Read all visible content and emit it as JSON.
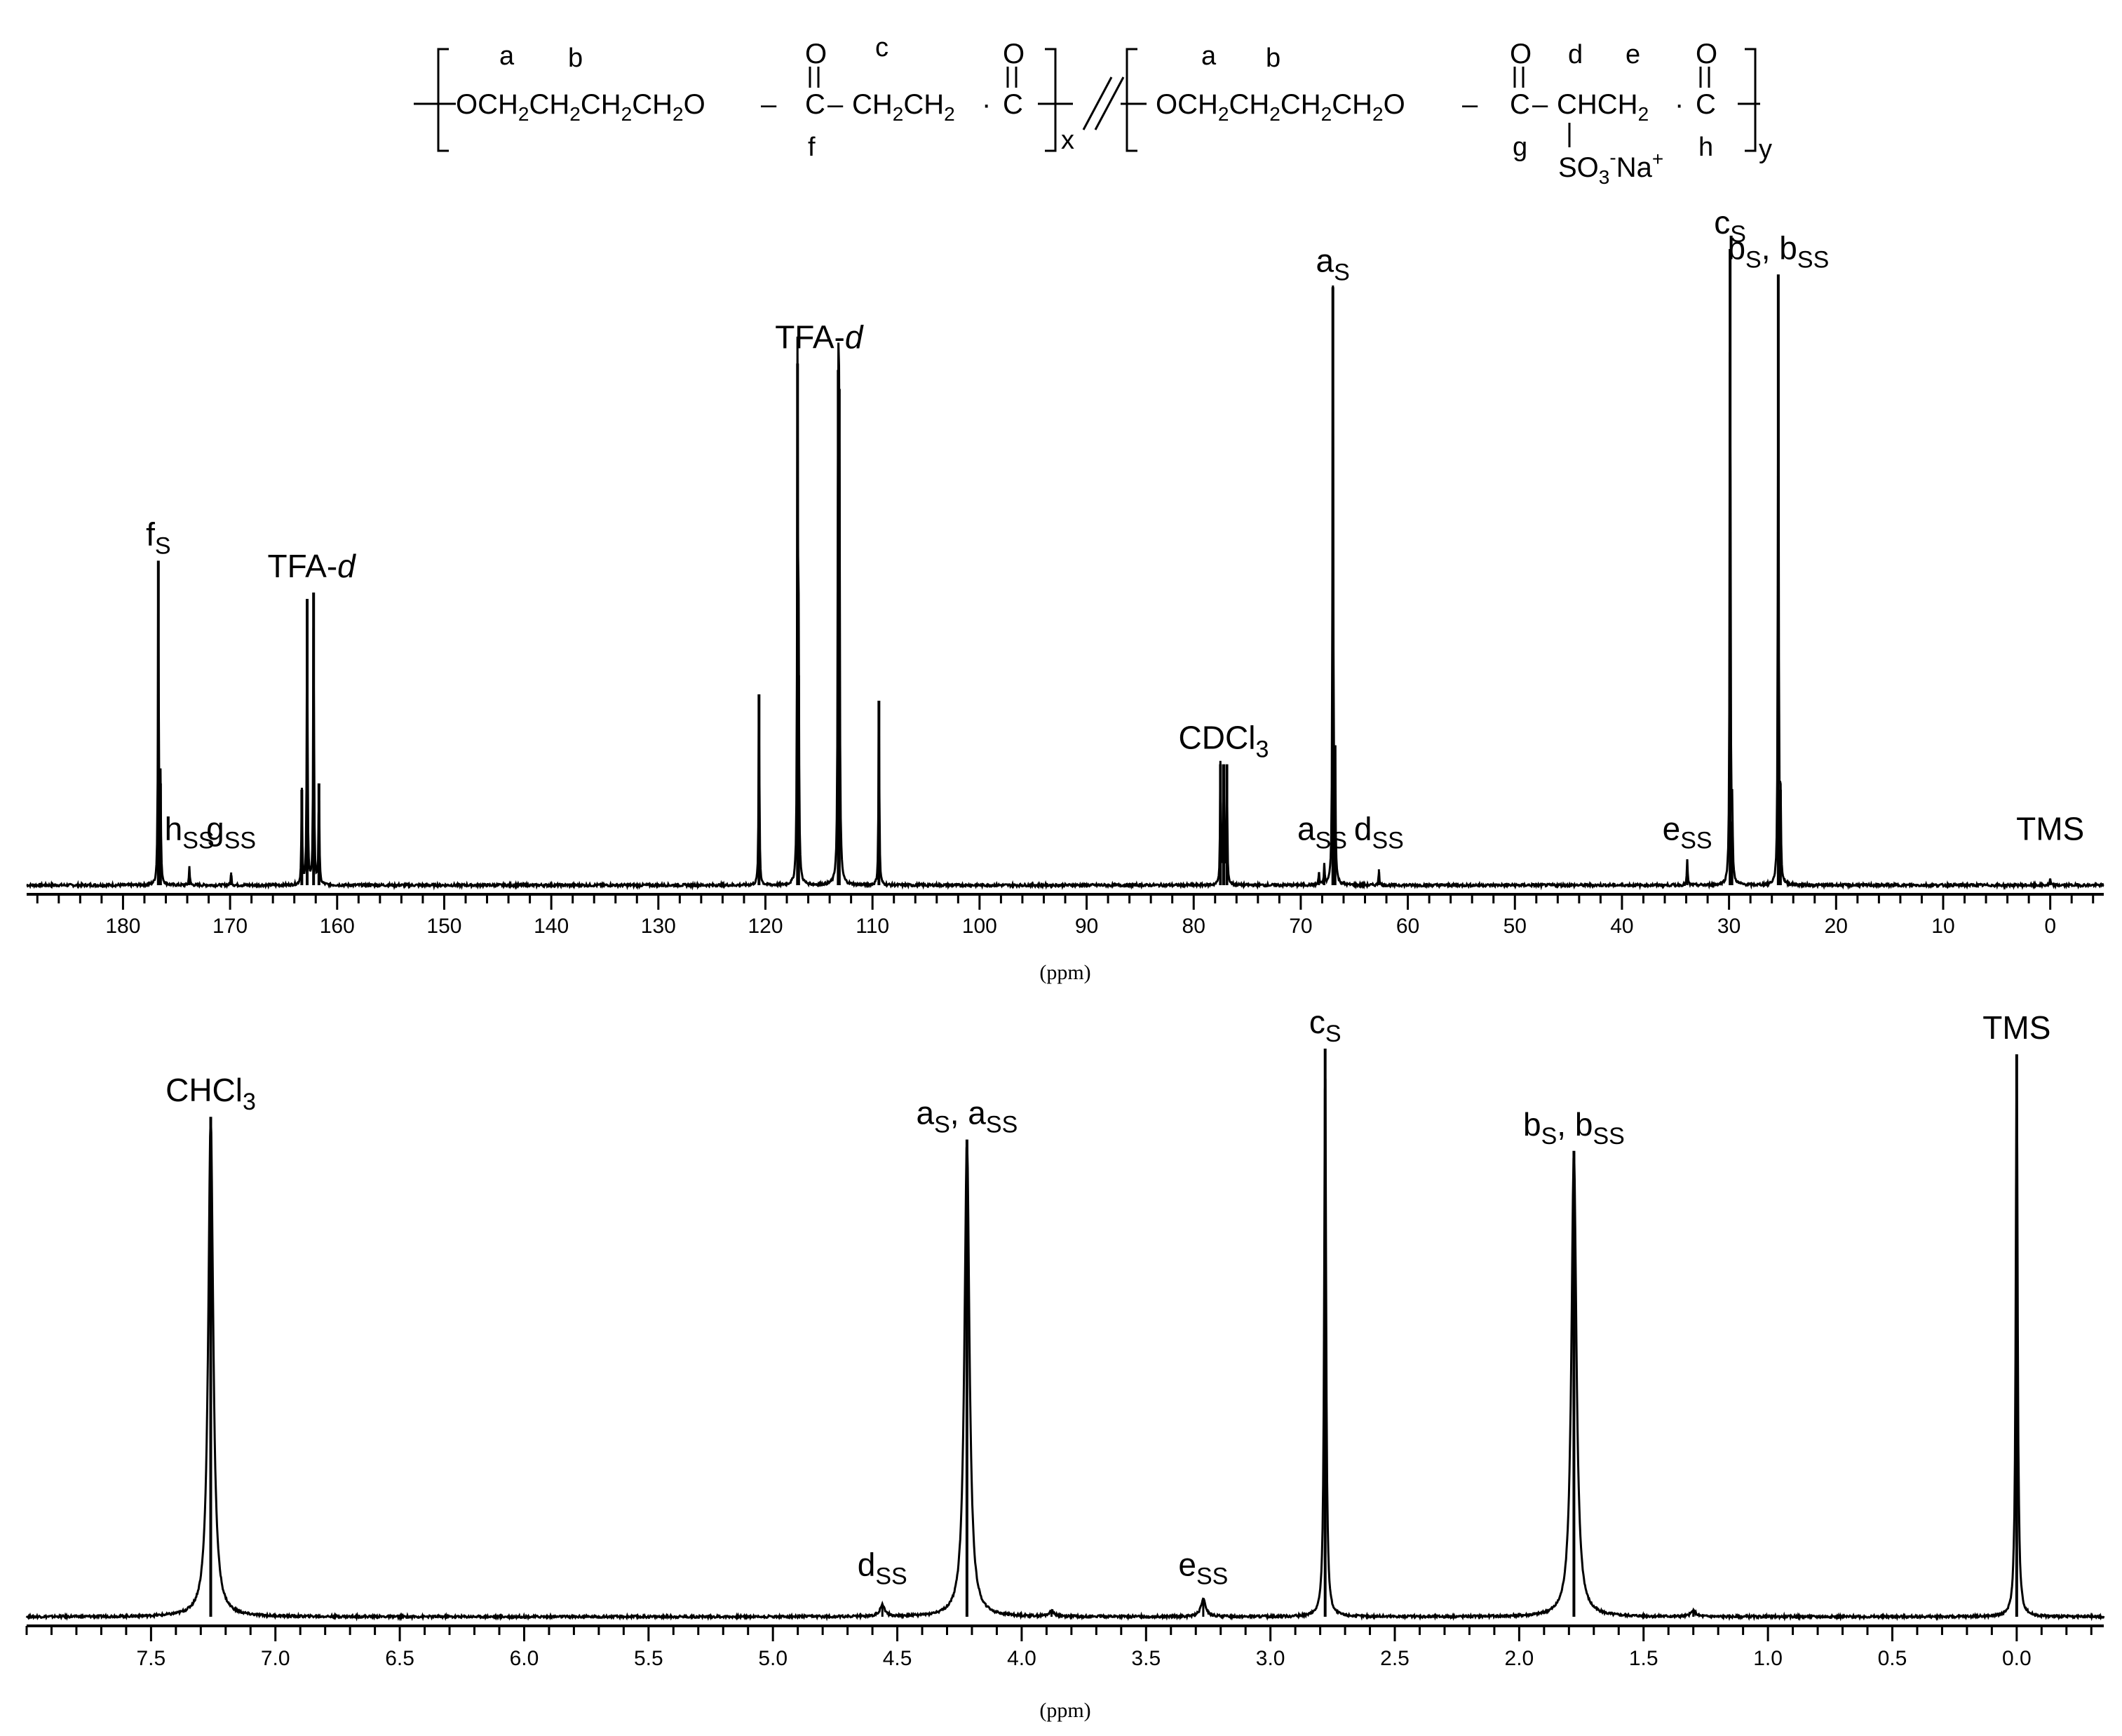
{
  "structure": {
    "unit1": {
      "chain": "OCH2CH2CH2CH2O",
      "letters": [
        "a",
        "b",
        "c",
        "f"
      ],
      "subscript": "x"
    },
    "separator": "//",
    "unit2": {
      "chain": "OCH2CH2CH2CH2O",
      "letters": [
        "a",
        "b",
        "d",
        "e",
        "g",
        "h"
      ],
      "substituent": "SO3-Na+",
      "subscript": "y"
    }
  },
  "chart_data": [
    {
      "type": "line",
      "spectrum": "13C NMR",
      "xlabel": "(ppm)",
      "xlim": [
        189,
        -5
      ],
      "x_reversed": true,
      "ticks": [
        180,
        170,
        160,
        150,
        140,
        130,
        120,
        110,
        100,
        90,
        80,
        70,
        60,
        50,
        40,
        30,
        20,
        10,
        0
      ],
      "peaks": [
        {
          "ppm": 176.7,
          "h": 0.51
        },
        {
          "ppm": 176.5,
          "h": 0.16
        },
        {
          "ppm": 173.8,
          "h": 0.03
        },
        {
          "ppm": 169.9,
          "h": 0.02
        },
        {
          "ppm": 163.3,
          "h": 0.15
        },
        {
          "ppm": 162.8,
          "h": 0.45
        },
        {
          "ppm": 162.2,
          "h": 0.46
        },
        {
          "ppm": 161.7,
          "h": 0.16
        },
        {
          "ppm": 120.6,
          "h": 0.3
        },
        {
          "ppm": 117.0,
          "h": 0.82
        },
        {
          "ppm": 116.9,
          "h": 0.33
        },
        {
          "ppm": 113.2,
          "h": 0.81
        },
        {
          "ppm": 113.1,
          "h": 0.78
        },
        {
          "ppm": 109.4,
          "h": 0.29
        },
        {
          "ppm": 77.5,
          "h": 0.19
        },
        {
          "ppm": 77.2,
          "h": 0.19
        },
        {
          "ppm": 76.9,
          "h": 0.19
        },
        {
          "ppm": 68.3,
          "h": 0.02
        },
        {
          "ppm": 67.8,
          "h": 0.03
        },
        {
          "ppm": 67.0,
          "h": 0.94
        },
        {
          "ppm": 66.8,
          "h": 0.22
        },
        {
          "ppm": 62.7,
          "h": 0.025
        },
        {
          "ppm": 33.9,
          "h": 0.04
        },
        {
          "ppm": 29.9,
          "h": 1.0
        },
        {
          "ppm": 29.7,
          "h": 0.1
        },
        {
          "ppm": 25.4,
          "h": 0.96
        },
        {
          "ppm": 25.2,
          "h": 0.15
        },
        {
          "ppm": 0.0,
          "h": 0.01
        }
      ],
      "annotations": [
        {
          "main": "f",
          "sub": "S",
          "ppm": 176.7
        },
        {
          "main": "h",
          "sub": "SS",
          "ppm": 173.8
        },
        {
          "main": "g",
          "sub": "SS",
          "ppm": 169.9
        },
        {
          "main": "TFA-",
          "italic": "d",
          "ppm": 162.4
        },
        {
          "main": "TFA-",
          "italic": "d",
          "ppm": 115.0
        },
        {
          "main": "CDCl",
          "sub": "3",
          "ppm": 77.2
        },
        {
          "main": "a",
          "sub": "SS",
          "ppm": 68.0
        },
        {
          "main": "a",
          "sub": "S",
          "ppm": 67.0
        },
        {
          "main": "d",
          "sub": "SS",
          "ppm": 62.7
        },
        {
          "main": "e",
          "sub": "SS",
          "ppm": 33.9
        },
        {
          "main": "c",
          "sub": "S",
          "ppm": 29.9
        },
        {
          "main": "b",
          "sub": "S",
          "main2": ", b",
          "sub2": "SS",
          "ppm": 25.4
        },
        {
          "main": "TMS",
          "ppm": 0.0
        }
      ]
    },
    {
      "type": "line",
      "spectrum": "1H NMR",
      "xlabel": "(ppm)",
      "xlim": [
        8.0,
        -0.35
      ],
      "x_reversed": true,
      "ticks": [
        "7.5",
        "7.0",
        "6.5",
        "6.0",
        "5.5",
        "5.0",
        "4.5",
        "4.0",
        "3.5",
        "3.0",
        "2.5",
        "2.0",
        "1.5",
        "1.0",
        "0.5",
        "0.0"
      ],
      "peaks": [
        {
          "ppm": 7.26,
          "h": 0.88
        },
        {
          "ppm": 4.56,
          "h": 0.02
        },
        {
          "ppm": 4.22,
          "h": 0.84
        },
        {
          "ppm": 3.88,
          "h": 0.01
        },
        {
          "ppm": 3.27,
          "h": 0.03
        },
        {
          "ppm": 2.78,
          "h": 1.0
        },
        {
          "ppm": 1.78,
          "h": 0.82
        },
        {
          "ppm": 1.3,
          "h": 0.01
        },
        {
          "ppm": 0.0,
          "h": 0.99
        }
      ],
      "annotations": [
        {
          "main": "CHCl",
          "sub": "3",
          "ppm": 7.26
        },
        {
          "main": "d",
          "sub": "SS",
          "ppm": 4.56
        },
        {
          "main": "a",
          "sub": "S",
          "main2": ", a",
          "sub2": "SS",
          "ppm": 4.22
        },
        {
          "main": "e",
          "sub": "SS",
          "ppm": 3.27
        },
        {
          "main": "c",
          "sub": "S",
          "ppm": 2.78
        },
        {
          "main": "b",
          "sub": "S",
          "main2": ", b",
          "sub2": "SS",
          "ppm": 1.78
        },
        {
          "main": "TMS",
          "ppm": 0.0
        }
      ]
    }
  ]
}
